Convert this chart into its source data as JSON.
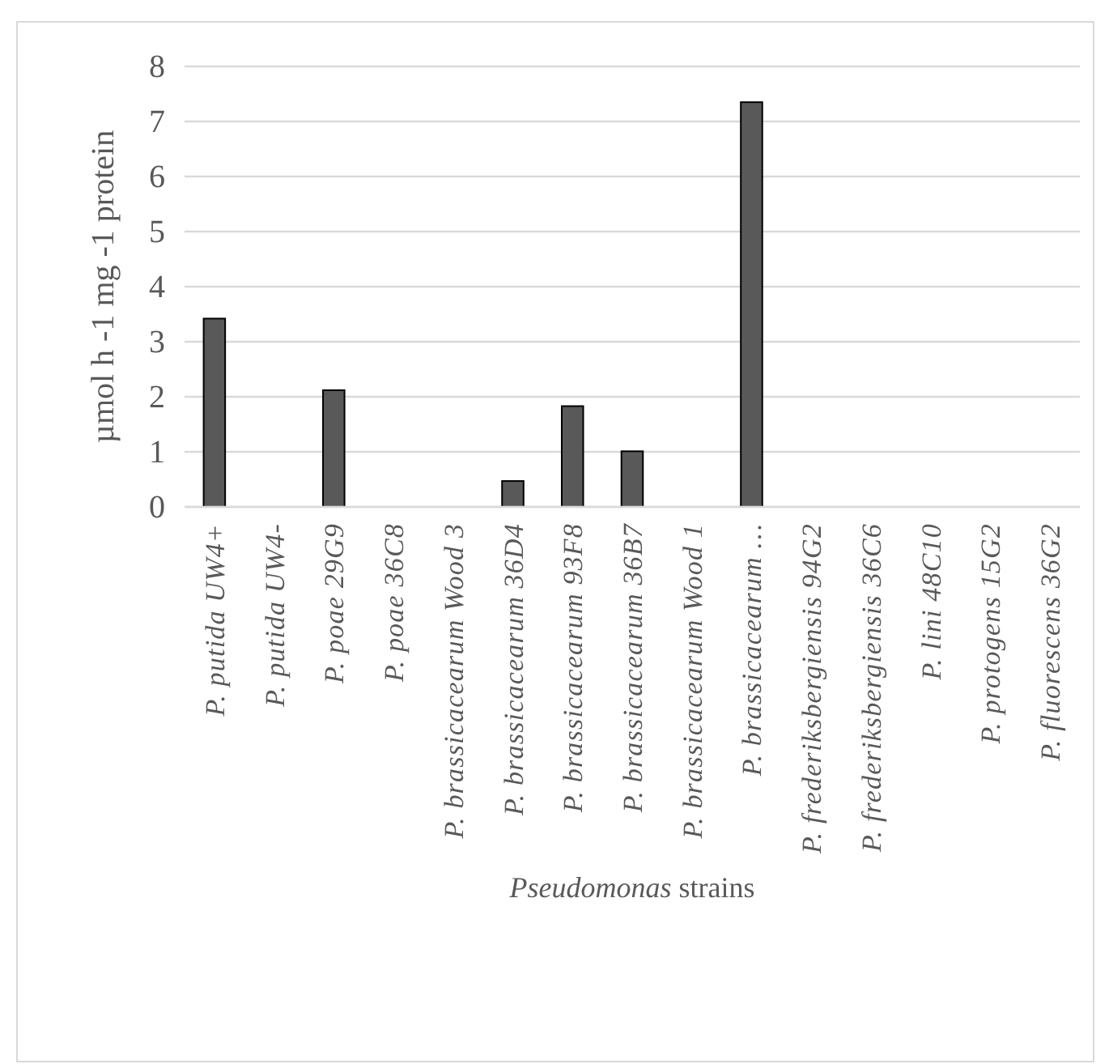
{
  "chart_data": {
    "type": "bar",
    "xlabel": "Pseudomonas strains",
    "ylabel": "µmol h -1 mg -1 protein",
    "categories": [
      "P. putida  UW4+",
      "P. putida UW4-",
      "P. poae 29G9",
      "P. poae 36C8",
      "P. brassicacearum Wood 3",
      "P. brassicacearum 36D4",
      "P. brassicacearum 93F8",
      "P. brassicacearum 36B7",
      "P. brassicacearum Wood 1",
      "P. brassicacearum …",
      "P. frederiksbergiensis 94G2",
      "P. frederiksbergiensis 36C6",
      "P. lini 48C10",
      "P. protogens 15G2",
      "P. fluorescens 36G2"
    ],
    "values": [
      3.42,
      0,
      2.12,
      0,
      0,
      0.47,
      1.83,
      1.01,
      0,
      7.35,
      0,
      0,
      0,
      0,
      0
    ],
    "color": "#595959",
    "ylim": [
      0,
      8
    ],
    "yticks": [
      0,
      1,
      2,
      3,
      4,
      5,
      6,
      7,
      8
    ],
    "grid": "y"
  }
}
